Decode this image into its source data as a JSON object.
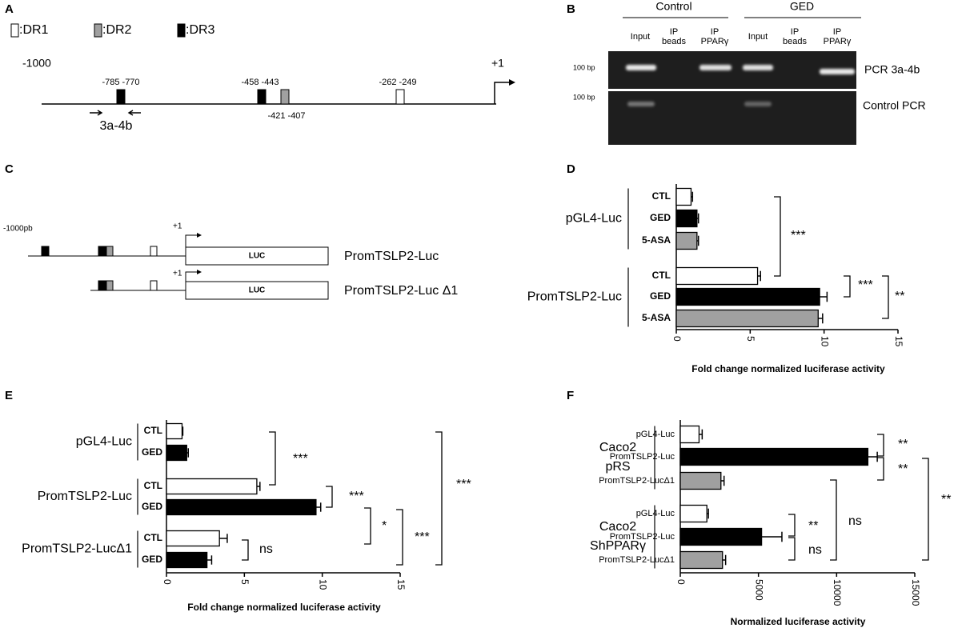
{
  "panel_labels": [
    "A",
    "B",
    "C",
    "D",
    "E",
    "F"
  ],
  "promoter_map": {
    "legend": [
      ":DR1",
      ":DR2",
      ":DR3"
    ],
    "start": "-1000",
    "tss": "+1",
    "sites": [
      "-785 -770",
      "-458 -443",
      "-421 -407",
      "-262 -249"
    ],
    "primer": "3a-4b"
  },
  "gel": {
    "groups": [
      "Control",
      "GED"
    ],
    "lanes": [
      [
        "Input"
      ],
      [
        "IP",
        "beads"
      ],
      [
        "IP",
        "PPARγ"
      ],
      [
        "Input"
      ],
      [
        "IP",
        "beads"
      ],
      [
        "IP",
        "PPARγ"
      ]
    ],
    "markers": [
      "100 bp",
      "100 bp"
    ],
    "rows": [
      "PCR 3a-4b",
      "Control PCR"
    ]
  },
  "constructs": {
    "start": "-1000pb",
    "tss": [
      "+1",
      "+1"
    ],
    "reporter": [
      "LUC",
      "LUC"
    ],
    "names": [
      "PromTSLP2-Luc",
      "PromTSLP2-Luc Δ1"
    ]
  },
  "chart_data": [
    {
      "type": "bar",
      "orientation": "horizontal",
      "xlabel": "Fold change normalized luciferase activity",
      "xlim": [
        0,
        15
      ],
      "xticks": [
        0,
        5,
        10,
        15
      ],
      "groups": [
        {
          "name": [
            "pGL4-Luc"
          ],
          "categories": [
            "CTL",
            "GED",
            "5-ASA"
          ],
          "values": [
            1.0,
            1.4,
            1.4
          ],
          "errors": [
            0.1,
            0.1,
            0.1
          ],
          "colors": [
            "#ffffff",
            "#000000",
            "#a0a0a0"
          ]
        },
        {
          "name": [
            "PromTSLP2-Luc"
          ],
          "categories": [
            "CTL",
            "GED",
            "5-ASA"
          ],
          "values": [
            5.5,
            9.7,
            9.6
          ],
          "errors": [
            0.2,
            0.5,
            0.3
          ],
          "colors": [
            "#ffffff",
            "#000000",
            "#a0a0a0"
          ]
        }
      ],
      "significance": [
        "***",
        "***",
        "**"
      ]
    },
    {
      "type": "bar",
      "orientation": "horizontal",
      "xlabel": "Fold change normalized luciferase activity",
      "xlim": [
        0,
        15
      ],
      "xticks": [
        0,
        5,
        10,
        15
      ],
      "groups": [
        {
          "name": [
            "pGL4-Luc"
          ],
          "categories": [
            "CTL",
            "GED"
          ],
          "values": [
            1.0,
            1.3
          ],
          "errors": [
            0.05,
            0.1
          ],
          "colors": [
            "#ffffff",
            "#000000"
          ]
        },
        {
          "name": [
            "PromTSLP2-Luc"
          ],
          "categories": [
            "CTL",
            "GED"
          ],
          "values": [
            5.8,
            9.6
          ],
          "errors": [
            0.2,
            0.3
          ],
          "colors": [
            "#ffffff",
            "#000000"
          ]
        },
        {
          "name": [
            "PromTSLP2-LucΔ1"
          ],
          "categories": [
            "CTL",
            "GED"
          ],
          "values": [
            3.4,
            2.6
          ],
          "errors": [
            0.5,
            0.3
          ],
          "colors": [
            "#ffffff",
            "#000000"
          ]
        }
      ],
      "significance": [
        "***",
        "***",
        "*",
        "***",
        "ns",
        "***"
      ]
    },
    {
      "type": "bar",
      "orientation": "horizontal",
      "xlabel": "Normalized luciferase activity",
      "xlim": [
        0,
        15000
      ],
      "xticks": [
        0,
        5000,
        10000,
        15000
      ],
      "groups": [
        {
          "name": [
            "Caco2",
            "pRS"
          ],
          "categories": [
            "pGL4-Luc",
            "PromTSLP2-Luc",
            "PromTSLP2-LucΔ1"
          ],
          "values": [
            1200,
            12000,
            2600
          ],
          "errors": [
            200,
            600,
            200
          ],
          "colors": [
            "#ffffff",
            "#000000",
            "#a0a0a0"
          ]
        },
        {
          "name": [
            "Caco2",
            "ShPPARγ"
          ],
          "categories": [
            "pGL4-Luc",
            "PromTSLP2-Luc",
            "PromTSLP2-LucΔ1"
          ],
          "values": [
            1700,
            5200,
            2700
          ],
          "errors": [
            100,
            1300,
            200
          ],
          "colors": [
            "#ffffff",
            "#000000",
            "#a0a0a0"
          ]
        }
      ],
      "significance": [
        "**",
        "**",
        "**",
        "ns",
        "**",
        "ns"
      ]
    }
  ]
}
